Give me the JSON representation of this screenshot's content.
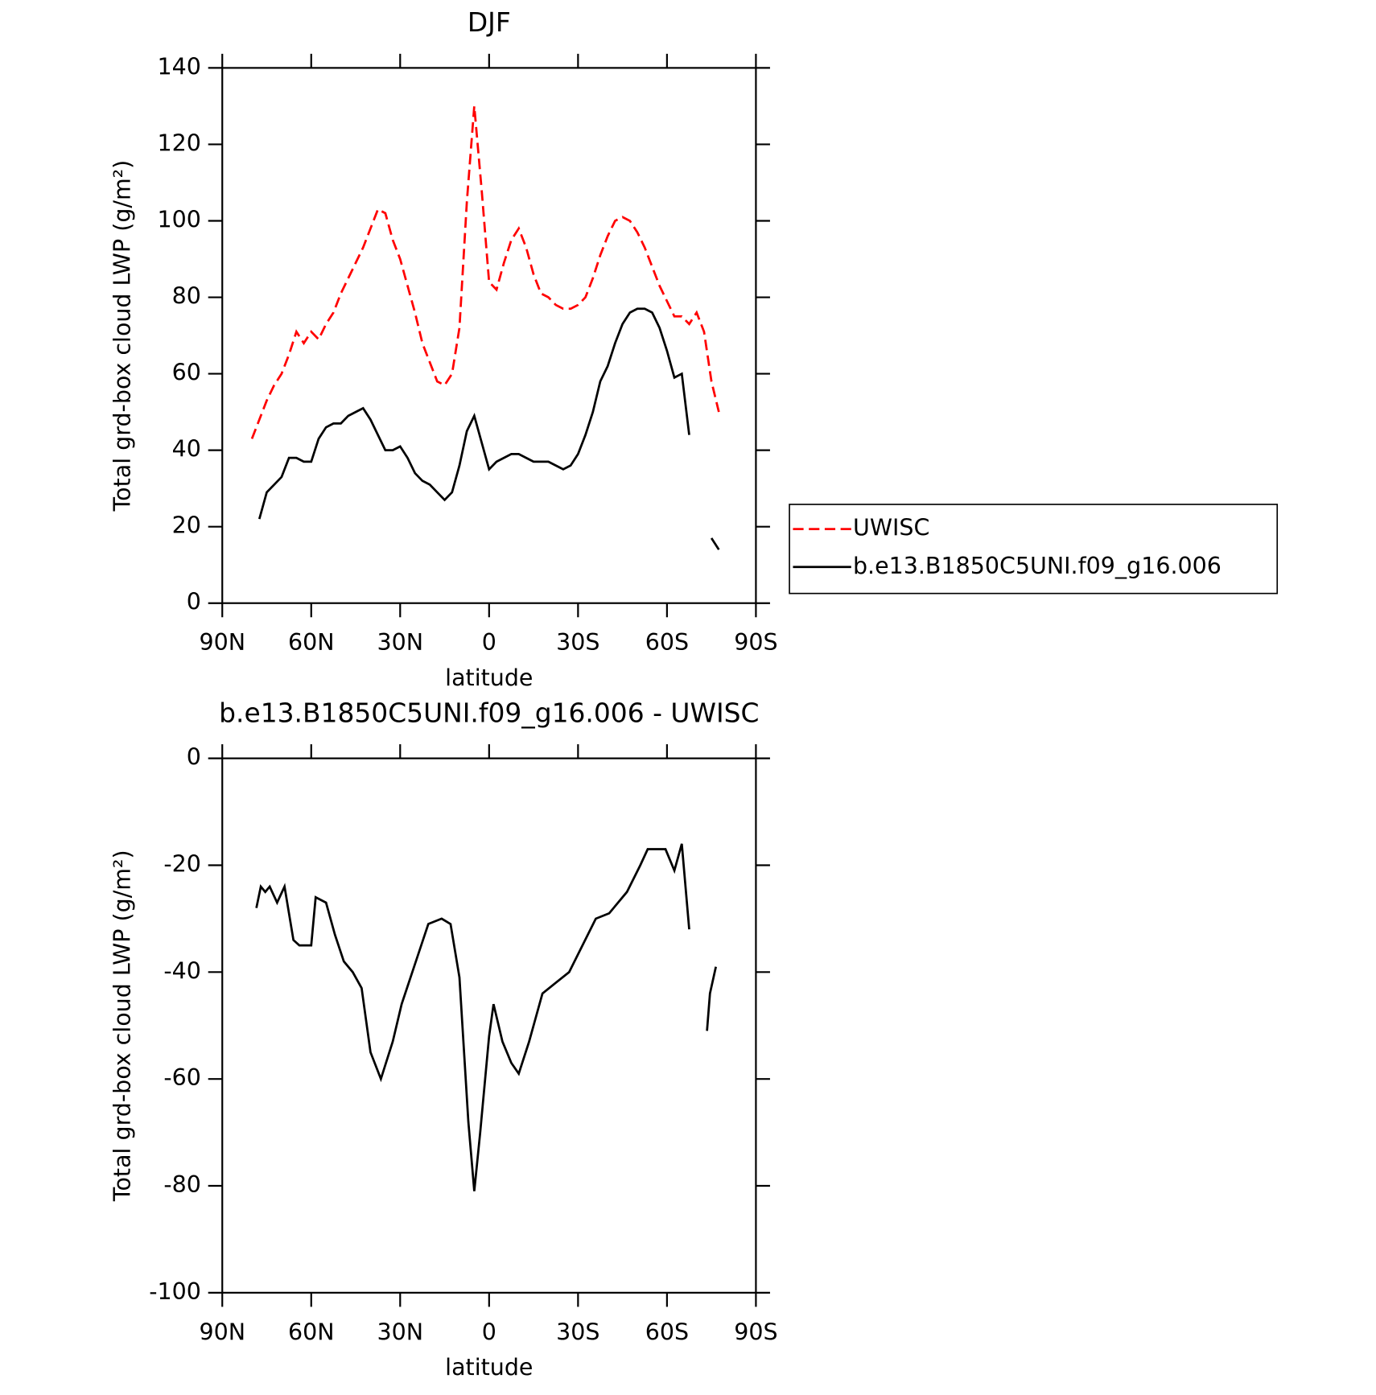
{
  "chart_data": [
    {
      "type": "line",
      "title": "DJF",
      "xlabel": "latitude",
      "ylabel": "Total grd-box cloud LWP (g/m²)",
      "x": [
        80,
        77.5,
        75,
        72.5,
        70,
        67.5,
        65,
        62.5,
        60,
        57.5,
        55,
        52.5,
        50,
        47.5,
        45,
        42.5,
        40,
        37.5,
        35,
        32.5,
        30,
        27.5,
        25,
        22.5,
        20,
        17.5,
        15,
        12.5,
        10,
        7.5,
        5,
        2.5,
        0,
        -2.5,
        -5,
        -7.5,
        -10,
        -12.5,
        -15,
        -17.5,
        -20,
        -22.5,
        -25,
        -27.5,
        -30,
        -32.5,
        -35,
        -37.5,
        -40,
        -42.5,
        -45,
        -47.5,
        -50,
        -52.5,
        -55,
        -57.5,
        -60,
        -62.5,
        -65,
        -67.5,
        -70,
        -72.5,
        -75,
        -77.5
      ],
      "series": [
        {
          "name": "UWISC",
          "color": "#ff0000",
          "dash": true,
          "values": [
            43,
            48,
            53,
            57,
            60,
            65,
            71,
            68,
            71,
            69,
            73,
            76,
            81,
            85,
            89,
            93,
            98,
            103,
            102,
            95,
            90,
            83,
            76,
            68,
            63,
            58,
            57,
            60,
            72,
            105,
            130,
            108,
            84,
            82,
            89,
            95,
            98,
            93,
            86,
            81,
            80,
            78,
            77,
            77,
            78,
            80,
            85,
            91,
            96,
            100,
            101,
            100,
            97,
            93,
            88,
            83,
            79,
            75,
            75,
            73,
            76,
            71,
            58,
            50
          ]
        },
        {
          "name": "b.e13.B1850C5UNI.f09_g16.006",
          "color": "#000000",
          "dash": false,
          "values": [
            null,
            22,
            29,
            31,
            33,
            38,
            38,
            37,
            37,
            43,
            46,
            47,
            47,
            49,
            50,
            51,
            48,
            44,
            40,
            40,
            41,
            38,
            34,
            32,
            31,
            29,
            27,
            29,
            36,
            45,
            49,
            42,
            35,
            37,
            38,
            39,
            39,
            38,
            37,
            37,
            37,
            36,
            35,
            36,
            39,
            44,
            50,
            58,
            62,
            68,
            73,
            76,
            77,
            77,
            76,
            72,
            66,
            59,
            60,
            44,
            null,
            null,
            17,
            14
          ]
        }
      ],
      "xlim": [
        90,
        -90
      ],
      "xticks": [
        {
          "value": 90,
          "label": "90N"
        },
        {
          "value": 60,
          "label": "60N"
        },
        {
          "value": 30,
          "label": "30N"
        },
        0,
        {
          "value": -30,
          "label": "30S"
        },
        {
          "value": -60,
          "label": "60S"
        },
        {
          "value": -90,
          "label": "90S"
        }
      ],
      "ylim": [
        0,
        140
      ],
      "yticks": [
        0,
        20,
        40,
        60,
        80,
        100,
        120,
        140
      ],
      "legend": true
    },
    {
      "type": "line",
      "title": "b.e13.B1850C5UNI.f09_g16.006 - UWISC",
      "xlabel": "latitude",
      "ylabel": "Total grd-box cloud LWP (g/m²)",
      "x": [
        78.5,
        77,
        75.5,
        74,
        71.5,
        69,
        66,
        64,
        60,
        58.5,
        55,
        52,
        49,
        46,
        43,
        40,
        36.5,
        32.5,
        29.5,
        26.5,
        23.5,
        20.5,
        16,
        13,
        10,
        7,
        5,
        3,
        0,
        -1.5,
        -4.5,
        -7.5,
        -10,
        -13.5,
        -18,
        -22.5,
        -27,
        -31.5,
        -36,
        -40.5,
        -46.5,
        -51,
        -53.5,
        -59.5,
        -62.5,
        -65,
        -67.5,
        -70,
        -73.5,
        -74.5,
        -76.5
      ],
      "series": [
        {
          "color": "#000000",
          "dash": false,
          "values": [
            -28,
            -24,
            -25,
            -24,
            -27,
            -24,
            -34,
            -35,
            -35,
            -26,
            -27,
            -33,
            -38,
            -40,
            -43,
            -55,
            -60,
            -53,
            -46,
            -41,
            -36,
            -31,
            -30,
            -31,
            -41,
            -68,
            -81,
            -70,
            -52,
            -46,
            -53,
            -57,
            -59,
            -53,
            -44,
            -42,
            -40,
            -35,
            -30,
            -29,
            -25,
            -20,
            -17,
            -17,
            -21,
            -16,
            -32,
            null,
            -51,
            -44,
            -39
          ]
        }
      ],
      "xlim": [
        90,
        -90
      ],
      "xticks": [
        {
          "value": 90,
          "label": "90N"
        },
        {
          "value": 60,
          "label": "60N"
        },
        {
          "value": 30,
          "label": "30N"
        },
        0,
        {
          "value": -30,
          "label": "30S"
        },
        {
          "value": -60,
          "label": "60S"
        },
        {
          "value": -90,
          "label": "90S"
        }
      ],
      "ylim": [
        -100,
        0
      ],
      "yticks": [
        -100,
        -80,
        -60,
        -40,
        -20,
        0
      ],
      "legend": false
    }
  ]
}
